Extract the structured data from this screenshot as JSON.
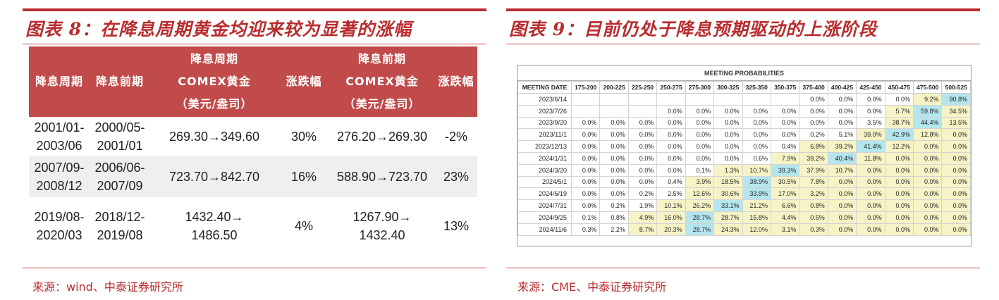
{
  "left": {
    "title": "图表 8：在降息周期黄金均迎来较为显著的涨幅",
    "headers": [
      "降息周期",
      "降息前期",
      "降息周期\nCOMEX黄金\n（美元/盎司）",
      "涨跌幅",
      "降息前期\nCOMEX黄金\n（美元/盎司）",
      "涨跌幅"
    ],
    "rows": [
      [
        "2001/01-\n2003/06",
        "2000/05-\n2001/01",
        "269.30→349.60",
        "30%",
        "276.20→269.30",
        "-2%"
      ],
      [
        "2007/09-\n2008/12",
        "2006/06-\n2007/09",
        "723.70→842.70",
        "16%",
        "588.90→723.70",
        "23%"
      ],
      [
        "2019/08-\n2020/03",
        "2018/12-\n2019/08",
        "1432.40→\n1486.50",
        "4%",
        "1267.90→\n1432.40",
        "13%"
      ]
    ],
    "source": "来源：wind、中泰证券研究所"
  },
  "right": {
    "title": "图表 9：目前仍处于降息预期驱动的上涨阶段",
    "table_title": "MEETING PROBABILITIES",
    "columns": [
      "MEETING DATE",
      "175-200",
      "200-225",
      "225-250",
      "250-275",
      "275-300",
      "300-325",
      "325-350",
      "350-375",
      "375-400",
      "400-425",
      "425-450",
      "450-475",
      "475-500",
      "500-525"
    ],
    "rows": [
      [
        "2023/6/14",
        "",
        "",
        "",
        "",
        "",
        "",
        "",
        "",
        "0.0%",
        "0.0%",
        "0.0%",
        "0.0%",
        "9.2%",
        "90.8%"
      ],
      [
        "2023/7/26",
        "",
        "",
        "",
        "0.0%",
        "0.0%",
        "0.0%",
        "0.0%",
        "0.0%",
        "0.0%",
        "0.0%",
        "0.0%",
        "5.7%",
        "59.8%",
        "34.5%"
      ],
      [
        "2023/9/20",
        "0.0%",
        "0.0%",
        "0.0%",
        "0.0%",
        "0.0%",
        "0.0%",
        "0.0%",
        "0.0%",
        "0.0%",
        "0.0%",
        "3.5%",
        "38.7%",
        "44.4%",
        "13.5%"
      ],
      [
        "2023/11/1",
        "0.0%",
        "0.0%",
        "0.0%",
        "0.0%",
        "0.0%",
        "0.0%",
        "0.0%",
        "0.0%",
        "0.2%",
        "5.1%",
        "39.0%",
        "42.9%",
        "12.8%",
        "0.0%"
      ],
      [
        "2023/12/13",
        "0.0%",
        "0.0%",
        "0.0%",
        "0.0%",
        "0.0%",
        "0.0%",
        "0.0%",
        "0.4%",
        "6.8%",
        "39.2%",
        "41.4%",
        "12.2%",
        "0.0%",
        "0.0%"
      ],
      [
        "2024/1/31",
        "0.0%",
        "0.0%",
        "0.0%",
        "0.0%",
        "0.0%",
        "0.0%",
        "0.6%",
        "7.9%",
        "39.2%",
        "40.4%",
        "11.8%",
        "0.0%",
        "0.0%",
        "0.0%"
      ],
      [
        "2024/3/20",
        "0.0%",
        "0.0%",
        "0.0%",
        "0.0%",
        "0.1%",
        "1.3%",
        "10.7%",
        "39.3%",
        "37.9%",
        "10.7%",
        "0.0%",
        "0.0%",
        "0.0%",
        "0.0%"
      ],
      [
        "2024/5/1",
        "0.0%",
        "0.0%",
        "0.0%",
        "0.4%",
        "3.9%",
        "18.5%",
        "38.9%",
        "30.5%",
        "7.8%",
        "0.0%",
        "0.0%",
        "0.0%",
        "0.0%",
        "0.0%"
      ],
      [
        "2024/6/19",
        "0.0%",
        "0.0%",
        "0.2%",
        "2.5%",
        "12.6%",
        "30.6%",
        "33.9%",
        "17.0%",
        "3.2%",
        "0.0%",
        "0.0%",
        "0.0%",
        "0.0%",
        "0.0%"
      ],
      [
        "2024/7/31",
        "0.0%",
        "0.2%",
        "1.9%",
        "10.1%",
        "26.2%",
        "33.1%",
        "21.2%",
        "6.6%",
        "0.8%",
        "0.0%",
        "0.0%",
        "0.0%",
        "0.0%",
        "0.0%"
      ],
      [
        "2024/9/25",
        "0.1%",
        "0.8%",
        "4.9%",
        "16.0%",
        "28.7%",
        "28.7%",
        "15.8%",
        "4.4%",
        "0.5%",
        "0.0%",
        "0.0%",
        "0.0%",
        "0.0%",
        "0.0%"
      ],
      [
        "2024/11/6",
        "0.3%",
        "2.2%",
        "8.7%",
        "20.3%",
        "28.7%",
        "24.3%",
        "12.0%",
        "3.1%",
        "0.3%",
        "0.0%",
        "0.0%",
        "0.0%",
        "0.0%",
        "0.0%"
      ]
    ],
    "highlight_max": [
      14,
      13,
      13,
      12,
      11,
      10,
      8,
      7,
      7,
      6,
      5,
      5
    ],
    "colors": {
      "highlight": "#b5e6ee",
      "zone": "#f6f3c6"
    },
    "source": "来源：CME、中泰证券研究所"
  },
  "colors": {
    "accent": "#b92c2e",
    "header_bg": "#c04b4a"
  }
}
